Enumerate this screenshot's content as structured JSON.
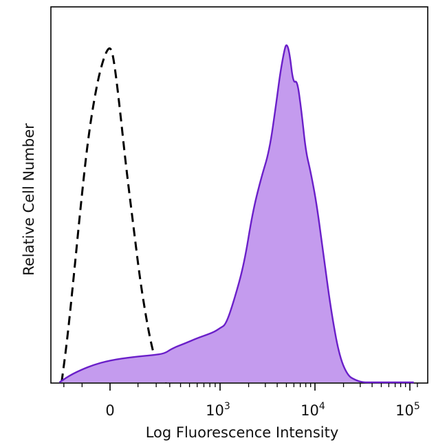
{
  "chart_data": {
    "type": "area",
    "xlabel": "Log Fluorescence Intensity",
    "ylabel": "Relative Cell Number",
    "x_scale": "biexponential",
    "xlim": [
      -300,
      150000
    ],
    "ylim": [
      0,
      1
    ],
    "grid": false,
    "major_ticks": [
      {
        "value": 0,
        "base": "0",
        "exp": ""
      },
      {
        "value": 1000,
        "base": "10",
        "exp": "3"
      },
      {
        "value": 10000,
        "base": "10",
        "exp": "4"
      },
      {
        "value": 100000,
        "base": "10",
        "exp": "5"
      }
    ],
    "minor_ticks": [
      -200,
      -100,
      100,
      200,
      300,
      400,
      500,
      600,
      700,
      800,
      900,
      2000,
      3000,
      4000,
      5000,
      6000,
      7000,
      8000,
      9000,
      20000,
      30000,
      40000,
      50000,
      60000,
      70000,
      80000,
      90000,
      120000
    ],
    "series": [
      {
        "style": "dashed",
        "color": "#000000",
        "filled": false,
        "x": [
          -215,
          -180,
          -140,
          -100,
          -70,
          -40,
          -20,
          -5,
          5,
          15,
          30,
          50,
          80,
          110,
          150,
          190,
          230,
          275
        ],
        "y": [
          0.0,
          0.12,
          0.32,
          0.56,
          0.74,
          0.88,
          0.95,
          0.985,
          0.98,
          0.92,
          0.8,
          0.64,
          0.46,
          0.3,
          0.16,
          0.07,
          0.02,
          0.0
        ]
      },
      {
        "style": "solid",
        "color": "#6a1fc9",
        "fill": "#c49bee",
        "filled": true,
        "x": [
          -230,
          -150,
          -60,
          0,
          80,
          180,
          260,
          320,
          450,
          600,
          750,
          900,
          1000,
          1150,
          1400,
          1800,
          2200,
          2700,
          3300,
          3900,
          4300,
          4700,
          5000,
          5400,
          5900,
          6500,
          7200,
          8000,
          9000,
          10500,
          12500,
          15000,
          18000,
          22000,
          27000,
          32000,
          40000,
          60000,
          110000
        ],
        "y": [
          0.0,
          0.025,
          0.05,
          0.065,
          0.075,
          0.08,
          0.085,
          0.1,
          0.115,
          0.13,
          0.14,
          0.15,
          0.16,
          0.17,
          0.24,
          0.35,
          0.5,
          0.6,
          0.68,
          0.82,
          0.91,
          0.97,
          1.0,
          0.97,
          0.88,
          0.89,
          0.8,
          0.68,
          0.62,
          0.52,
          0.36,
          0.2,
          0.08,
          0.02,
          0.006,
          0.0,
          0.0,
          0.0,
          0.0
        ]
      }
    ]
  }
}
